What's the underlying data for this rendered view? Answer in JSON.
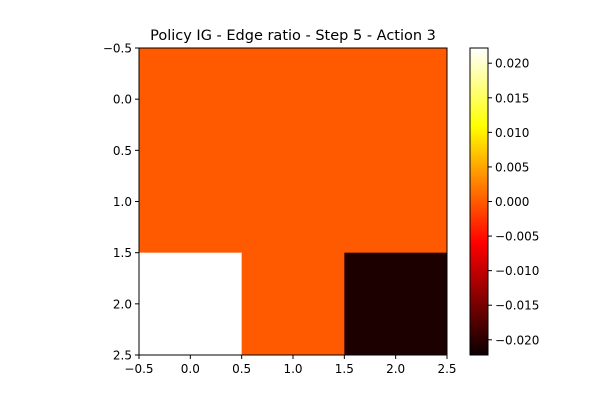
{
  "chart_data": {
    "type": "heatmap",
    "title": "Policy IG - Edge ratio - Step 5 - Action 3",
    "xlabel": "",
    "ylabel": "",
    "colormap": "hot",
    "grid": false,
    "xlim": [
      -0.5,
      2.5
    ],
    "ylim": [
      2.5,
      -0.5
    ],
    "x_ticks": [
      "−0.5",
      "0.0",
      "0.5",
      "1.0",
      "1.5",
      "2.0",
      "2.5"
    ],
    "y_ticks": [
      "−0.5",
      "0.0",
      "0.5",
      "1.0",
      "1.5",
      "2.0",
      "2.5"
    ],
    "rows": [
      0,
      1,
      2
    ],
    "cols": [
      0,
      1,
      2
    ],
    "values": [
      [
        0.0,
        0.0,
        0.0
      ],
      [
        0.0,
        0.0,
        0.0
      ],
      [
        0.0222,
        0.0,
        -0.0222
      ]
    ],
    "colorbar": {
      "vmin": -0.0222,
      "vmax": 0.0222,
      "ticks": [
        "0.020",
        "0.015",
        "0.010",
        "0.005",
        "0.000",
        "−0.005",
        "−0.010",
        "−0.015",
        "−0.020"
      ]
    }
  }
}
